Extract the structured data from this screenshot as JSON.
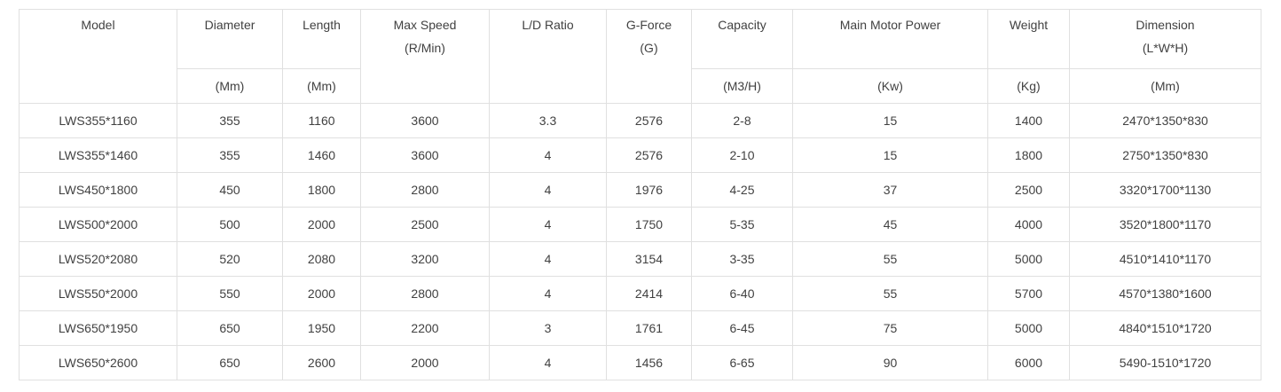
{
  "colors": {
    "border": "#e0e0e0",
    "text": "#414141",
    "background": "#ffffff"
  },
  "chart_data": {
    "type": "table",
    "columns": [
      "Model",
      "Diameter (Mm)",
      "Length (Mm)",
      "Max Speed (R/Min)",
      "L/D Ratio",
      "G-Force (G)",
      "Capacity (M3/H)",
      "Main Motor Power (Kw)",
      "Weight (Kg)",
      "Dimension (L*W*H) (Mm)"
    ],
    "header": {
      "model": "Model",
      "diameter": "Diameter",
      "diameter_unit": "(Mm)",
      "length": "Length",
      "length_unit": "(Mm)",
      "max_speed_line1": "Max Speed",
      "max_speed_line2": "(R/Min)",
      "ld_ratio": "L/D Ratio",
      "g_force_line1": "G-Force",
      "g_force_line2": "(G)",
      "capacity": "Capacity",
      "capacity_unit": "(M3/H)",
      "main_motor_power": "Main Motor Power",
      "main_motor_power_unit": "(Kw)",
      "weight": "Weight",
      "weight_unit": "(Kg)",
      "dimension_line1": "Dimension",
      "dimension_line2": "(L*W*H)",
      "dimension_unit": "(Mm)"
    },
    "rows": [
      [
        "LWS355*1160",
        "355",
        "1160",
        "3600",
        "3.3",
        "2576",
        "2-8",
        "15",
        "1400",
        "2470*1350*830"
      ],
      [
        "LWS355*1460",
        "355",
        "1460",
        "3600",
        "4",
        "2576",
        "2-10",
        "15",
        "1800",
        "2750*1350*830"
      ],
      [
        "LWS450*1800",
        "450",
        "1800",
        "2800",
        "4",
        "1976",
        "4-25",
        "37",
        "2500",
        "3320*1700*1130"
      ],
      [
        "LWS500*2000",
        "500",
        "2000",
        "2500",
        "4",
        "1750",
        "5-35",
        "45",
        "4000",
        "3520*1800*1170"
      ],
      [
        "LWS520*2080",
        "520",
        "2080",
        "3200",
        "4",
        "3154",
        "3-35",
        "55",
        "5000",
        "4510*1410*1170"
      ],
      [
        "LWS550*2000",
        "550",
        "2000",
        "2800",
        "4",
        "2414",
        "6-40",
        "55",
        "5700",
        "4570*1380*1600"
      ],
      [
        "LWS650*1950",
        "650",
        "1950",
        "2200",
        "3",
        "1761",
        "6-45",
        "75",
        "5000",
        "4840*1510*1720"
      ],
      [
        "LWS650*2600",
        "650",
        "2600",
        "2000",
        "4",
        "1456",
        "6-65",
        "90",
        "6000",
        "5490-1510*1720"
      ]
    ]
  }
}
